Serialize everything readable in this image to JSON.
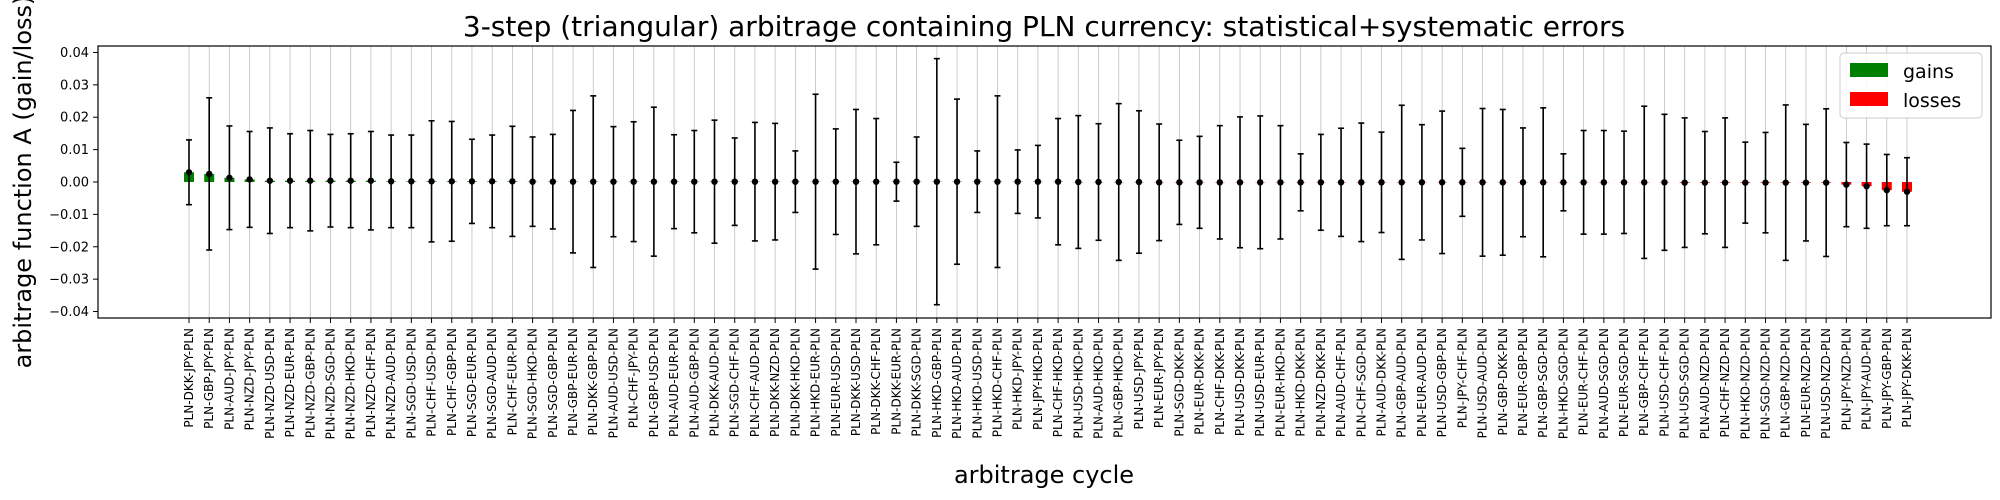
{
  "chart_data": {
    "type": "bar",
    "title": "3-step (triangular) arbitrage containing PLN currency: statistical+systematic errors",
    "xlabel": "arbitrage cycle",
    "ylabel": "arbitrage function A (gain/loss)",
    "ylim": [
      -0.042,
      0.042
    ],
    "yticks": [
      -0.04,
      -0.03,
      -0.02,
      -0.01,
      0.0,
      0.01,
      0.02,
      0.03,
      0.04
    ],
    "ytick_labels": [
      "−0.04",
      "−0.03",
      "−0.02",
      "−0.01",
      "0.00",
      "0.01",
      "0.02",
      "0.03",
      "0.04"
    ],
    "grid": "vertical",
    "legend": {
      "placement": "top-right",
      "entries": [
        {
          "name": "gains",
          "color": "#008000"
        },
        {
          "name": "losses",
          "color": "#ff0000"
        }
      ]
    },
    "colors": {
      "gains": "#008000",
      "losses": "#ff0000",
      "errorbar": "#000000"
    },
    "categories": [
      "PLN-DKK-JPY-PLN",
      "PLN-GBP-JPY-PLN",
      "PLN-AUD-JPY-PLN",
      "PLN-NZD-JPY-PLN",
      "PLN-NZD-USD-PLN",
      "PLN-NZD-EUR-PLN",
      "PLN-NZD-GBP-PLN",
      "PLN-NZD-SGD-PLN",
      "PLN-NZD-HKD-PLN",
      "PLN-NZD-CHF-PLN",
      "PLN-NZD-AUD-PLN",
      "PLN-SGD-USD-PLN",
      "PLN-CHF-USD-PLN",
      "PLN-CHF-GBP-PLN",
      "PLN-SGD-EUR-PLN",
      "PLN-SGD-AUD-PLN",
      "PLN-CHF-EUR-PLN",
      "PLN-SGD-HKD-PLN",
      "PLN-SGD-GBP-PLN",
      "PLN-GBP-EUR-PLN",
      "PLN-DKK-GBP-PLN",
      "PLN-AUD-USD-PLN",
      "PLN-CHF-JPY-PLN",
      "PLN-GBP-USD-PLN",
      "PLN-AUD-EUR-PLN",
      "PLN-AUD-GBP-PLN",
      "PLN-DKK-AUD-PLN",
      "PLN-SGD-CHF-PLN",
      "PLN-CHF-AUD-PLN",
      "PLN-DKK-NZD-PLN",
      "PLN-DKK-HKD-PLN",
      "PLN-HKD-EUR-PLN",
      "PLN-EUR-USD-PLN",
      "PLN-DKK-USD-PLN",
      "PLN-DKK-CHF-PLN",
      "PLN-DKK-EUR-PLN",
      "PLN-DKK-SGD-PLN",
      "PLN-HKD-GBP-PLN",
      "PLN-HKD-AUD-PLN",
      "PLN-HKD-USD-PLN",
      "PLN-HKD-CHF-PLN",
      "PLN-HKD-JPY-PLN",
      "PLN-JPY-HKD-PLN",
      "PLN-CHF-HKD-PLN",
      "PLN-USD-HKD-PLN",
      "PLN-AUD-HKD-PLN",
      "PLN-GBP-HKD-PLN",
      "PLN-USD-JPY-PLN",
      "PLN-EUR-JPY-PLN",
      "PLN-SGD-DKK-PLN",
      "PLN-EUR-DKK-PLN",
      "PLN-CHF-DKK-PLN",
      "PLN-USD-DKK-PLN",
      "PLN-USD-EUR-PLN",
      "PLN-EUR-HKD-PLN",
      "PLN-HKD-DKK-PLN",
      "PLN-NZD-DKK-PLN",
      "PLN-AUD-CHF-PLN",
      "PLN-CHF-SGD-PLN",
      "PLN-AUD-DKK-PLN",
      "PLN-GBP-AUD-PLN",
      "PLN-EUR-AUD-PLN",
      "PLN-USD-GBP-PLN",
      "PLN-JPY-CHF-PLN",
      "PLN-USD-AUD-PLN",
      "PLN-GBP-DKK-PLN",
      "PLN-EUR-GBP-PLN",
      "PLN-GBP-SGD-PLN",
      "PLN-HKD-SGD-PLN",
      "PLN-EUR-CHF-PLN",
      "PLN-AUD-SGD-PLN",
      "PLN-EUR-SGD-PLN",
      "PLN-GBP-CHF-PLN",
      "PLN-USD-CHF-PLN",
      "PLN-USD-SGD-PLN",
      "PLN-AUD-NZD-PLN",
      "PLN-CHF-NZD-PLN",
      "PLN-HKD-NZD-PLN",
      "PLN-SGD-NZD-PLN",
      "PLN-GBP-NZD-PLN",
      "PLN-EUR-NZD-PLN",
      "PLN-USD-NZD-PLN",
      "PLN-JPY-NZD-PLN",
      "PLN-JPY-AUD-PLN",
      "PLN-JPY-GBP-PLN",
      "PLN-JPY-DKK-PLN"
    ],
    "values": [
      0.003,
      0.0025,
      0.0013,
      0.0008,
      0.0004,
      0.0004,
      0.0004,
      0.0004,
      0.0004,
      0.0004,
      0.0002,
      0.0002,
      0.0002,
      0.0002,
      0.0002,
      0.0002,
      0.0002,
      0.0001,
      0.0001,
      0.0001,
      0.0001,
      0.0001,
      0.0001,
      0.0001,
      0.0001,
      0.0001,
      0.0001,
      0.0001,
      0.0001,
      0.0001,
      0.0001,
      0.0001,
      0.0001,
      0.0001,
      0.0001,
      0.0001,
      0.0001,
      0.0001,
      0.0001,
      0.0001,
      0.0001,
      0.0001,
      0.0001,
      0.0001,
      0.0,
      0.0,
      0.0,
      0.0,
      -0.0001,
      -0.0001,
      -0.0001,
      -0.0001,
      -0.0001,
      -0.0001,
      -0.0001,
      -0.0001,
      -0.0001,
      -0.0001,
      -0.0001,
      -0.0001,
      -0.0001,
      -0.0001,
      -0.0001,
      -0.0001,
      -0.0001,
      -0.0001,
      -0.0001,
      -0.0001,
      -0.0001,
      -0.0001,
      -0.0001,
      -0.0001,
      -0.0001,
      -0.0001,
      -0.0002,
      -0.0002,
      -0.0002,
      -0.0002,
      -0.0002,
      -0.0002,
      -0.0002,
      -0.0002,
      -0.0008,
      -0.0013,
      -0.0025,
      -0.003
    ],
    "errors": [
      0.01,
      0.0235,
      0.016,
      0.0148,
      0.0163,
      0.0145,
      0.0155,
      0.0143,
      0.0145,
      0.0152,
      0.0143,
      0.0143,
      0.0187,
      0.0185,
      0.013,
      0.0143,
      0.017,
      0.0138,
      0.0146,
      0.022,
      0.0265,
      0.017,
      0.0185,
      0.023,
      0.0145,
      0.0158,
      0.019,
      0.0135,
      0.0183,
      0.018,
      0.0095,
      0.027,
      0.0163,
      0.0223,
      0.0195,
      0.006,
      0.0138,
      0.038,
      0.0255,
      0.0095,
      0.0265,
      0.0098,
      0.0112,
      0.0195,
      0.0205,
      0.018,
      0.0242,
      0.022,
      0.018,
      0.013,
      0.0142,
      0.0175,
      0.0202,
      0.0205,
      0.0175,
      0.0088,
      0.0148,
      0.0167,
      0.0183,
      0.0155,
      0.0238,
      0.0178,
      0.022,
      0.0105,
      0.0228,
      0.0225,
      0.0168,
      0.023,
      0.0088,
      0.016,
      0.016,
      0.0158,
      0.0235,
      0.021,
      0.02,
      0.0158,
      0.02,
      0.0125,
      0.0155,
      0.024,
      0.018,
      0.0228,
      0.013,
      0.013,
      0.011,
      0.0105
    ]
  }
}
